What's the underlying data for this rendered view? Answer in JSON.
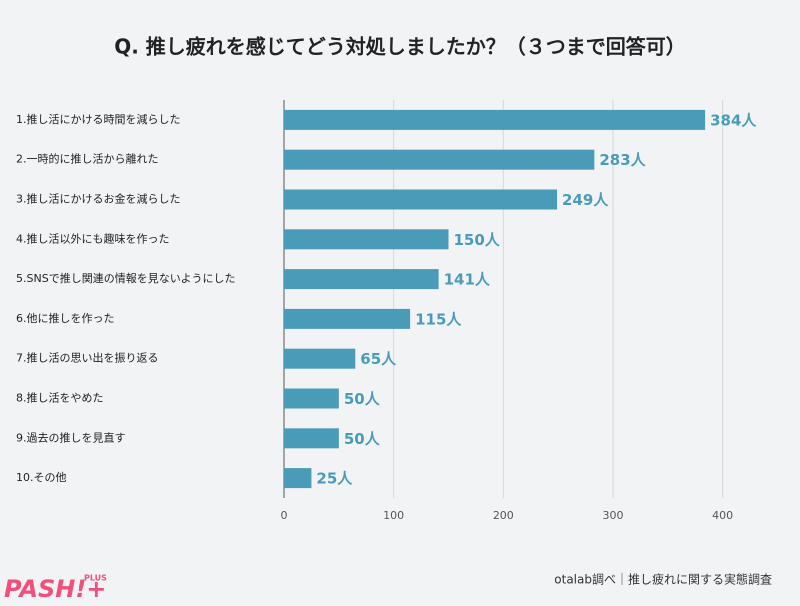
{
  "chart_data": {
    "type": "bar",
    "title": "Q. 推し疲れを感じてどう対処しましたか？（３つまで回答可）",
    "categories": [
      "1.推し活にかける時間を減らした",
      "2.一時的に推し活から離れた",
      "3.推し活にかけるお金を減らした",
      "4.推し活以外にも趣味を作った",
      "5.SNSで推し関連の情報を見ないようにした",
      "6.他に推しを作った",
      "7.推し活の思い出を振り返る",
      "8.推し活をやめた",
      "9.過去の推しを見直す",
      "10.その他"
    ],
    "values": [
      384,
      283,
      249,
      150,
      141,
      115,
      65,
      50,
      50,
      25
    ],
    "value_labels": [
      "384人",
      "283人",
      "249人",
      "150人",
      "141人",
      "115人",
      "65人",
      "50人",
      "50人",
      "25人"
    ],
    "color": "#4a9bb8",
    "xlim": [
      0,
      445
    ],
    "xticks": [
      0,
      100,
      200,
      300,
      400
    ],
    "grid": true,
    "source": "otalab調べ｜推し疲れに関する実態調査",
    "logo": "PASH!+",
    "logo_sub": "PLUS"
  }
}
